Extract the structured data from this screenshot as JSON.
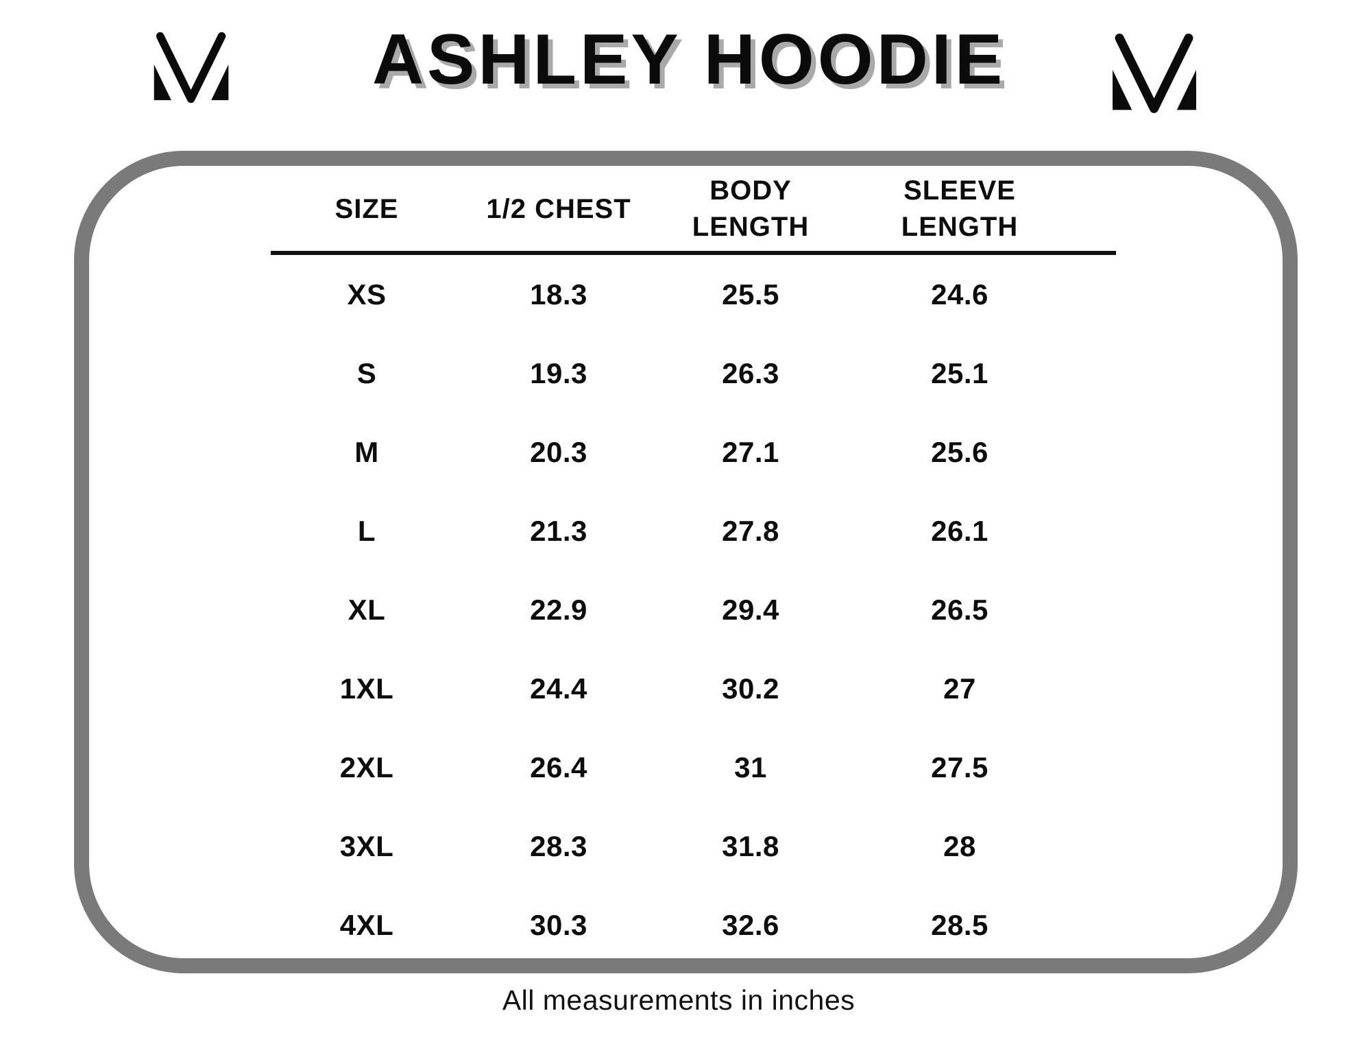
{
  "page": {
    "title": "ASHLEY HOODIE",
    "footnote": "All measurements in inches"
  },
  "logos": {
    "left": "m-monogram-logo",
    "right": "m-monogram-logo"
  },
  "table": {
    "display_headers": [
      "SIZE",
      "1/2 CHEST",
      "BODY\nLENGTH",
      "SLEEVE\nLENGTH"
    ]
  },
  "chart_data": {
    "type": "table",
    "title": "ASHLEY HOODIE",
    "columns": [
      "SIZE",
      "1/2 CHEST",
      "BODY LENGTH",
      "SLEEVE LENGTH"
    ],
    "rows": [
      [
        "XS",
        "18.3",
        "25.5",
        "24.6"
      ],
      [
        "S",
        "19.3",
        "26.3",
        "25.1"
      ],
      [
        "M",
        "20.3",
        "27.1",
        "25.6"
      ],
      [
        "L",
        "21.3",
        "27.8",
        "26.1"
      ],
      [
        "XL",
        "22.9",
        "29.4",
        "26.5"
      ],
      [
        "1XL",
        "24.4",
        "30.2",
        "27"
      ],
      [
        "2XL",
        "26.4",
        "31",
        "27.5"
      ],
      [
        "3XL",
        "28.3",
        "31.8",
        "28"
      ],
      [
        "4XL",
        "30.3",
        "32.6",
        "28.5"
      ]
    ],
    "note": "All measurements in inches",
    "units": "inches"
  },
  "colors": {
    "text": "#0d0d0d",
    "panel_border": "#7a7a7a",
    "title_shadow": "#a9a9a9",
    "header_rule": "#101010"
  }
}
